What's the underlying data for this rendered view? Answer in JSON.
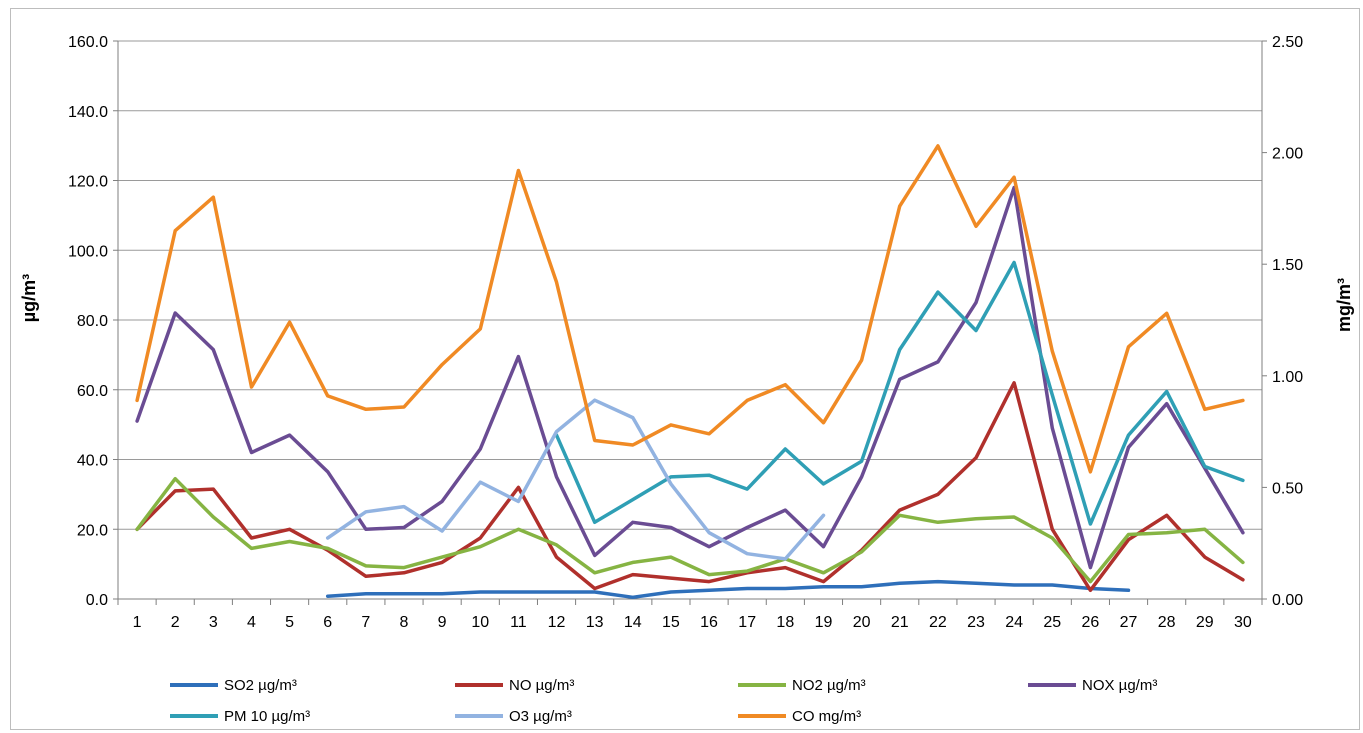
{
  "chart_data": {
    "type": "line",
    "x": [
      1,
      2,
      3,
      4,
      5,
      6,
      7,
      8,
      9,
      10,
      11,
      12,
      13,
      14,
      15,
      16,
      17,
      18,
      19,
      20,
      21,
      22,
      23,
      24,
      25,
      26,
      27,
      28,
      29,
      30
    ],
    "ylabel": "µg/m³",
    "y2label": "mg/m³",
    "ylim": [
      0,
      160
    ],
    "y2lim": [
      0,
      2.5
    ],
    "yticks": [
      "0.0",
      "20.0",
      "40.0",
      "60.0",
      "80.0",
      "100.0",
      "120.0",
      "140.0",
      "160.0"
    ],
    "y2ticks": [
      "0.00",
      "0.50",
      "1.00",
      "1.50",
      "2.00",
      "2.50"
    ],
    "grid": true,
    "legend_position": "bottom",
    "series": [
      {
        "name": "SO2  µg/m³",
        "axis": "left",
        "color": "#2e6fba",
        "values": [
          null,
          null,
          null,
          null,
          null,
          0.8,
          1.5,
          1.5,
          1.5,
          2,
          2,
          2,
          2,
          0.5,
          2,
          2.5,
          3,
          3,
          3.5,
          3.5,
          4.5,
          5,
          4.5,
          4,
          4,
          3,
          2.5,
          null,
          null,
          null
        ]
      },
      {
        "name": "NO µg/m³",
        "axis": "left",
        "color": "#b0302c",
        "values": [
          20,
          31,
          31.5,
          17.5,
          20,
          14,
          6.5,
          7.5,
          10.5,
          17.5,
          32,
          12,
          3,
          7,
          6,
          5,
          7.5,
          9,
          5,
          14,
          25.5,
          30,
          40.5,
          62,
          20,
          2.5,
          17,
          24,
          12,
          5.5
        ]
      },
      {
        "name": "NO2  µg/m³",
        "axis": "left",
        "color": "#86b443",
        "values": [
          20,
          34.5,
          23.5,
          14.5,
          16.5,
          14.5,
          9.5,
          9,
          12,
          15,
          20,
          15.5,
          7.5,
          10.5,
          12,
          7,
          8,
          11.5,
          7.5,
          13.5,
          24,
          22,
          23,
          23.5,
          17.5,
          5,
          18.5,
          19,
          20,
          10.5
        ]
      },
      {
        "name": "NOX  µg/m³",
        "axis": "left",
        "color": "#6a4c93",
        "values": [
          51,
          82,
          71.5,
          42,
          47,
          36.5,
          20,
          20.5,
          28,
          43,
          69.5,
          35,
          12.5,
          22,
          20.5,
          15,
          20.5,
          25.5,
          15,
          35,
          63,
          68,
          85,
          118,
          49,
          9,
          43.5,
          56,
          37.5,
          19
        ]
      },
      {
        "name": "PM 10  µg/m³",
        "axis": "left",
        "color": "#2f9fb5",
        "values": [
          null,
          null,
          null,
          null,
          null,
          null,
          null,
          null,
          null,
          null,
          null,
          47,
          22,
          28.5,
          35,
          35.5,
          31.5,
          43,
          33,
          39.5,
          71.5,
          88,
          77,
          96.5,
          58.5,
          21.5,
          47,
          59.5,
          38,
          34
        ]
      },
      {
        "name": "O3  µg/m³",
        "axis": "left",
        "color": "#92b3e1",
        "values": [
          null,
          null,
          null,
          null,
          null,
          17.5,
          25,
          26.5,
          19.5,
          33.5,
          28,
          48,
          57,
          52,
          33,
          19,
          13,
          11.5,
          24,
          null,
          null,
          null,
          null,
          null,
          null,
          null,
          null,
          null,
          null,
          null
        ]
      },
      {
        "name": "CO mg/m³",
        "axis": "right",
        "color": "#f08a24",
        "values": [
          0.89,
          1.65,
          1.8,
          0.95,
          1.24,
          0.91,
          0.85,
          0.86,
          1.05,
          1.21,
          1.92,
          1.42,
          0.71,
          0.69,
          0.78,
          0.74,
          0.89,
          0.96,
          0.79,
          1.07,
          1.76,
          2.03,
          1.67,
          1.89,
          1.11,
          0.57,
          1.13,
          1.28,
          0.85,
          0.89
        ]
      }
    ]
  }
}
